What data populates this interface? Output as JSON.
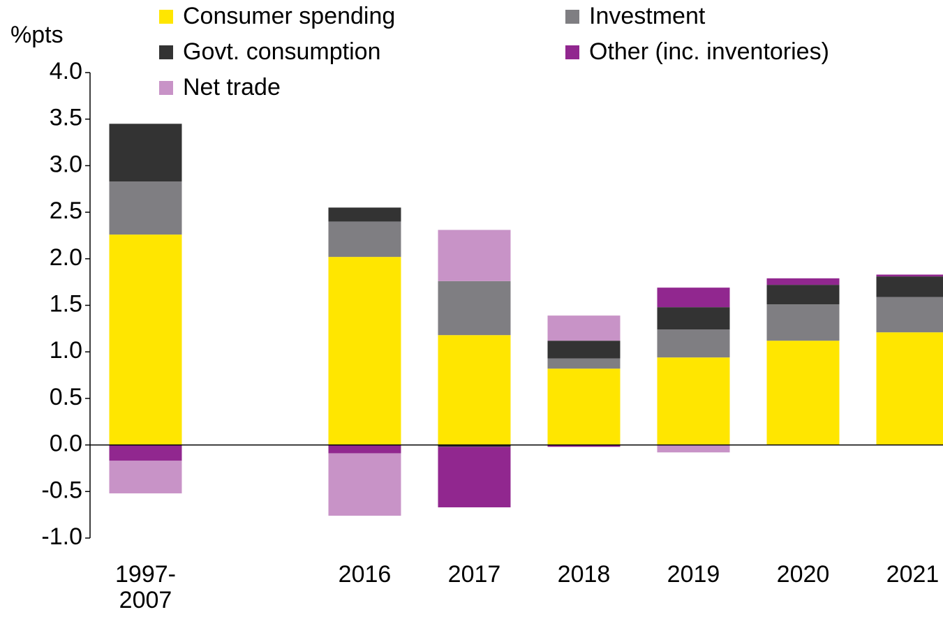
{
  "chart_data": {
    "type": "stacked_bar",
    "y_label": "%pts",
    "categories": [
      "1997-\n2007",
      null,
      "2016",
      "2017",
      "2018",
      "2019",
      "2020",
      "2021"
    ],
    "series": [
      {
        "name": "Consumer spending",
        "color": "#FFE600",
        "values": [
          2.26,
          null,
          2.02,
          1.18,
          0.82,
          0.94,
          1.12,
          1.21
        ]
      },
      {
        "name": "Investment",
        "color": "#7F7E82",
        "values": [
          0.57,
          null,
          0.38,
          0.58,
          0.11,
          0.3,
          0.39,
          0.38
        ]
      },
      {
        "name": "Govt. consumption",
        "color": "#333333",
        "values": [
          0.62,
          null,
          0.15,
          -0.02,
          0.19,
          0.24,
          0.21,
          0.22
        ]
      },
      {
        "name": "Other (inc. inventories)",
        "color": "#91278F",
        "values": [
          -0.17,
          null,
          -0.09,
          -0.65,
          -0.02,
          0.21,
          0.07,
          0.02
        ]
      },
      {
        "name": "Net trade",
        "color": "#C893C7",
        "values": [
          -0.35,
          null,
          -0.67,
          0.55,
          0.27,
          -0.08,
          0,
          0
        ]
      }
    ],
    "ylim": [
      -1.0,
      4.0
    ],
    "yticks": [
      {
        "value": -1.0,
        "label": "-1.0"
      },
      -0.5,
      {
        "value": 0.0,
        "label": "0.0"
      },
      0.5,
      {
        "value": 1.0,
        "label": "1.0"
      },
      1.5,
      {
        "value": 2.0,
        "label": "2.0"
      },
      2.5,
      {
        "value": 3.0,
        "label": "3.0"
      },
      3.5,
      {
        "value": 4.0,
        "label": "4.0"
      }
    ]
  }
}
